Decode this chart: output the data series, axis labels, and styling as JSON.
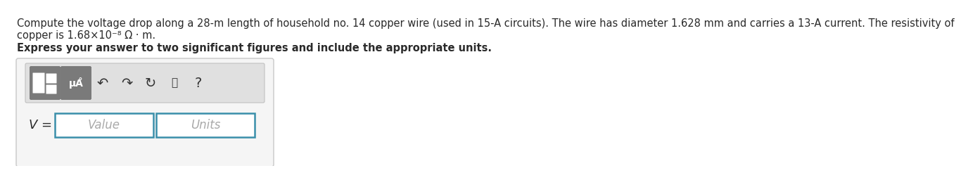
{
  "bg_color": "#ffffff",
  "text_color": "#2a2a2a",
  "line1": "Compute the voltage drop along a 28-m length of household no. 14 copper wire (used in 15-A circuits). The wire has diameter 1.628 mm and carries a 13-A current. The resistivity of",
  "line2": "copper is 1.68×10⁻⁸ Ω · m.",
  "bold_line": "Express your answer to two significant figures and include the appropriate units.",
  "v_label": "$V$ =",
  "value_placeholder": "Value",
  "units_placeholder": "Units",
  "outer_box_edge": "#c8c8c8",
  "outer_box_face": "#f5f5f5",
  "toolbar_bg": "#e0e0e0",
  "icon_face": "#7a7a7a",
  "icon_edge": "#666666",
  "input_border_color": "#3a8faa",
  "placeholder_color": "#aaaaaa",
  "font_size_body": 10.5,
  "font_size_bold": 10.5,
  "font_size_label": 12
}
